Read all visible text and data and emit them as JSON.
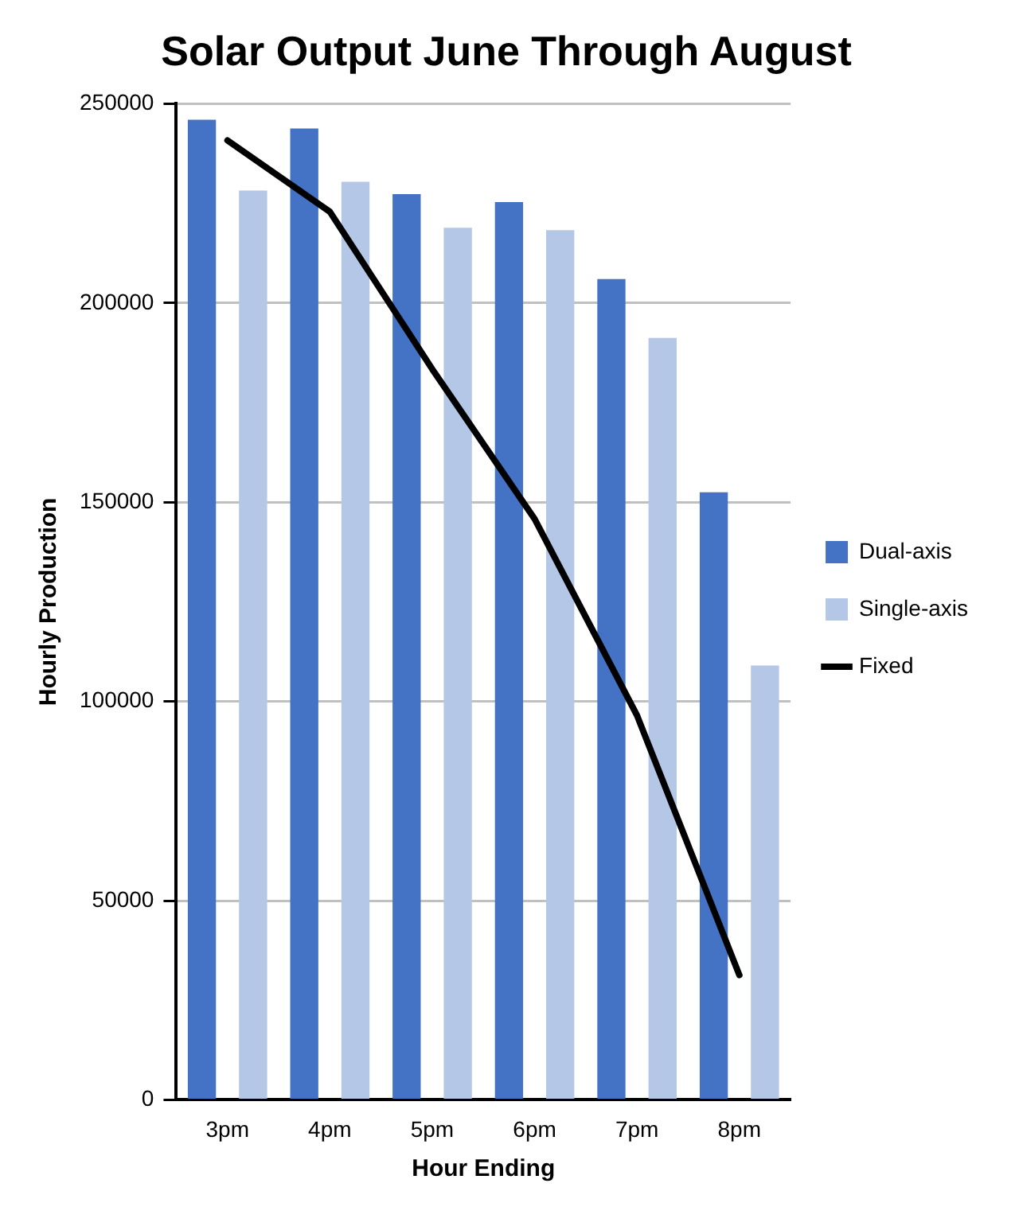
{
  "chart_data": {
    "type": "bar",
    "title": "Solar Output June Through August",
    "xlabel": "Hour Ending",
    "ylabel": "Hourly Production",
    "categories": [
      "3pm",
      "4pm",
      "5pm",
      "6pm",
      "7pm",
      "8pm"
    ],
    "series": [
      {
        "name": "Dual-axis",
        "color": "#4472c4",
        "values": [
          246000,
          243800,
          227300,
          225300,
          206000,
          152500
        ]
      },
      {
        "name": "Single-axis",
        "color": "#b4c7e7",
        "values": [
          228200,
          230400,
          218900,
          218300,
          191200,
          109000
        ]
      },
      {
        "name": "Fixed",
        "type": "line",
        "color": "#000000",
        "values": [
          240800,
          222900,
          183400,
          145800,
          96500,
          31300
        ]
      }
    ],
    "ylim": [
      0,
      250000
    ],
    "yticks": [
      0,
      50000,
      100000,
      150000,
      200000,
      250000
    ],
    "grid": "y",
    "legend": "right",
    "marker": "none"
  }
}
